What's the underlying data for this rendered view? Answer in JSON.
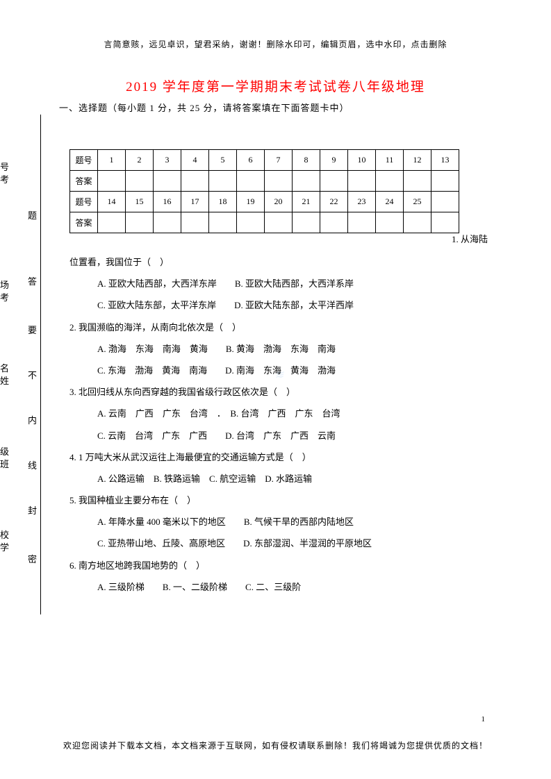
{
  "header_note": "言简意赅，远见卓识，望君采纳，谢谢！删除水印可，编辑页眉，选中水印，点击删除",
  "title": "2019 学年度第一学期期末考试试卷八年级地理",
  "section1": "一、选择题（每小题 1 分，共 25 分，请将答案填在下面答题卡中）",
  "table": {
    "row1_label": "题号",
    "row1_nums": [
      "1",
      "2",
      "3",
      "4",
      "5",
      "6",
      "7",
      "8",
      "9",
      "10",
      "11",
      "12",
      "13"
    ],
    "row2_label": "答案",
    "row3_label": "题号",
    "row3_nums": [
      "14",
      "15",
      "16",
      "17",
      "18",
      "19",
      "20",
      "21",
      "22",
      "23",
      "24",
      "25",
      ""
    ],
    "row4_label": "答案"
  },
  "q1_intro": "1. 从海陆",
  "questions": [
    {
      "text": "位置看，我国位于（　）",
      "opts": [
        "A. 亚欧大陆西部，大西洋东岸　　B. 亚欧大陆西部，大西洋系岸",
        "C. 亚欧大陆东部，太平洋东岸　　D. 亚欧大陆东部，太平洋西岸"
      ]
    },
    {
      "text": "2. 我国濒临的海洋，从南向北依次是（　）",
      "opts": [
        "A. 渤海　东海　南海　黄海　　B. 黄海　渤海　东海　南海",
        "C. 东海　渤海　黄海　南海　　D. 南海　东海　黄海　渤海"
      ]
    },
    {
      "text": "3. 北回归线从东向西穿越的我国省级行政区依次是（　）",
      "opts": [
        "A. 云南　广西　广东　台湾　．　B. 台湾　广西　广东　台湾",
        "C. 云南　台湾　广东　广西　　D. 台湾　广东　广西　云南"
      ]
    },
    {
      "text": "4. 1 万吨大米从武汉运往上海最便宜的交通运输方式是（　）",
      "opts": [
        "A. 公路运输　B. 铁路运输　C. 航空运输　D. 水路运输"
      ]
    },
    {
      "text": "5. 我国种植业主要分布在（　）",
      "opts": [
        "A. 年降水量 400 毫米以下的地区　　B. 气候干旱的西部内陆地区",
        "C. 亚热带山地、丘陵、高原地区　　D. 东部湿润、半湿润的平原地区"
      ]
    },
    {
      "text": "6. 南方地区地跨我国地势的（　）",
      "opts": [
        "A. 三级阶梯　　B. 一、二级阶梯　　C. 二、三级阶"
      ]
    }
  ],
  "side": {
    "inner": [
      "题",
      "答",
      "要",
      "不",
      "内",
      "线",
      "封",
      "密"
    ],
    "outer_pairs": [
      [
        "号",
        "考"
      ],
      [
        "场",
        "考"
      ],
      [
        "名",
        "姓"
      ],
      [
        "级",
        "班"
      ],
      [
        "校",
        "学"
      ]
    ]
  },
  "page_num": "1",
  "footer_note": "欢迎您阅读并下载本文档，本文档来源于互联网，如有侵权请联系删除！我们将竭诚为您提供优质的文档！"
}
